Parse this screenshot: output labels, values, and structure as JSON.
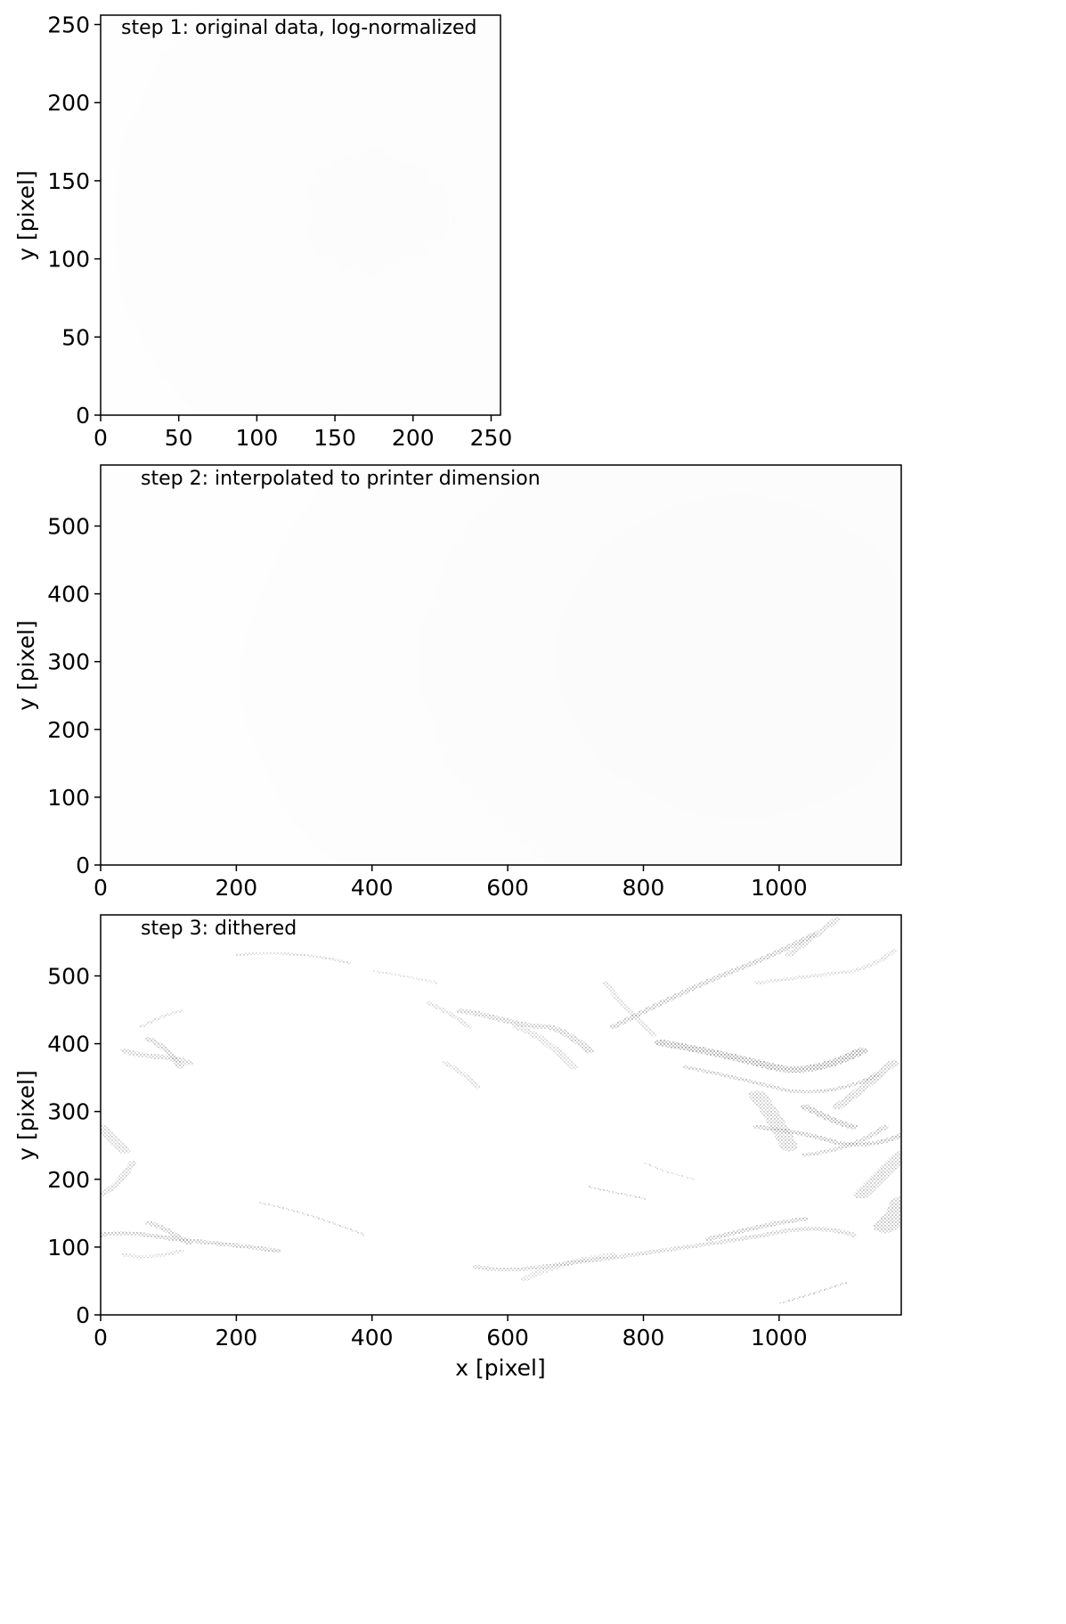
{
  "chart_data": [
    {
      "type": "heatmap",
      "title": "step 1: original data, log-normalized",
      "xlabel": "",
      "ylabel": "y [pixel]",
      "xlim": [
        0,
        256
      ],
      "ylim": [
        0,
        256
      ],
      "xticks": [
        0,
        50,
        100,
        150,
        200,
        250
      ],
      "yticks": [
        0,
        50,
        100,
        150,
        200,
        250
      ],
      "colormap": "gray_r",
      "grid": false
    },
    {
      "type": "heatmap",
      "title": "step 2: interpolated to printer dimension",
      "xlabel": "",
      "ylabel": "y [pixel]",
      "xlim": [
        0,
        1180
      ],
      "ylim": [
        0,
        590
      ],
      "xticks": [
        0,
        200,
        400,
        600,
        800,
        1000
      ],
      "yticks": [
        0,
        100,
        200,
        300,
        400,
        500
      ],
      "colormap": "gray_r",
      "grid": false
    },
    {
      "type": "heatmap",
      "title": "step 3: dithered",
      "xlabel": "x [pixel]",
      "ylabel": "y [pixel]",
      "xlim": [
        0,
        1180
      ],
      "ylim": [
        0,
        590
      ],
      "xticks": [
        0,
        200,
        400,
        600,
        800,
        1000
      ],
      "yticks": [
        0,
        100,
        200,
        300,
        400,
        500
      ],
      "colormap": "binary",
      "grid": false
    }
  ]
}
